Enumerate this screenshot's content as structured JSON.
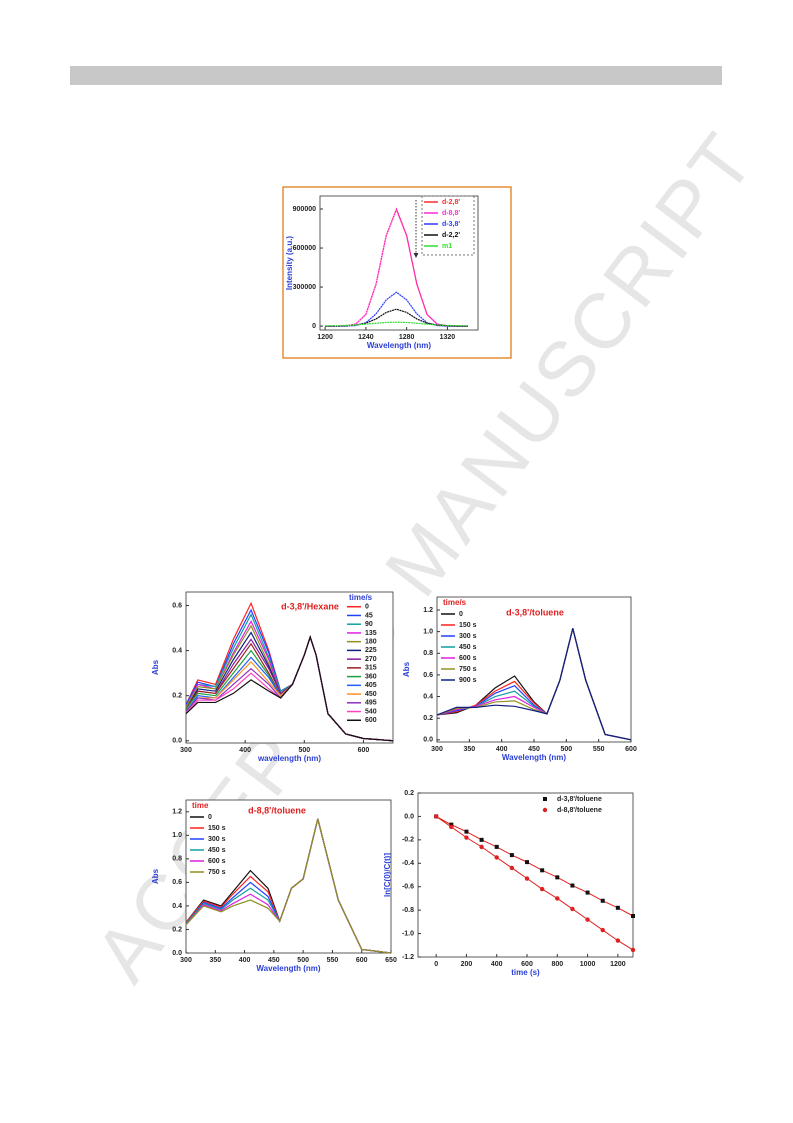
{
  "watermark": "ACCEPTED MANUSCRIPT",
  "chart_data": [
    {
      "type": "line",
      "xlabel": "Wavelength (nm)",
      "ylabel": "Intensity (a.u.)",
      "x": [
        1200,
        1210,
        1220,
        1230,
        1240,
        1250,
        1260,
        1270,
        1280,
        1290,
        1300,
        1310,
        1320,
        1330,
        1340
      ],
      "xlim": [
        1195,
        1350
      ],
      "xticks": [
        1200,
        1240,
        1280,
        1320
      ],
      "ylim": [
        -30000,
        1000000
      ],
      "yticks": [
        0,
        300000,
        600000,
        900000
      ],
      "legend": "upper right",
      "series": [
        {
          "name": "d-2,8'",
          "color": "#ff2a2a",
          "values": [
            0,
            0,
            2000,
            15000,
            90000,
            324000,
            698000,
            900000,
            698000,
            324000,
            90000,
            15000,
            2000,
            0,
            0
          ]
        },
        {
          "name": "d-8,8'",
          "color": "#ff2ad4",
          "values": [
            0,
            0,
            2000,
            15000,
            90000,
            322000,
            695000,
            895000,
            695000,
            322000,
            90000,
            15000,
            2000,
            0,
            0
          ]
        },
        {
          "name": "d-3,8'",
          "color": "#2a3cff",
          "values": [
            0,
            0,
            0,
            4000,
            26000,
            94000,
            202000,
            260000,
            202000,
            94000,
            26000,
            4000,
            0,
            0,
            0
          ]
        },
        {
          "name": "d-2,2'",
          "color": "#111111",
          "values": [
            0,
            0,
            2000,
            8000,
            22000,
            55000,
            105000,
            130000,
            105000,
            55000,
            22000,
            8000,
            2000,
            0,
            0
          ]
        },
        {
          "name": "m1",
          "color": "#33dd33",
          "values": [
            2000,
            3000,
            5000,
            9000,
            15000,
            22000,
            28000,
            30000,
            28000,
            22000,
            15000,
            9000,
            5000,
            3000,
            2000
          ]
        }
      ]
    },
    {
      "type": "line",
      "title": "d-3,8'/Hexane",
      "legend_title": "time/s",
      "xlabel": "wavelength (nm)",
      "ylabel": "Abs",
      "x": [
        300,
        320,
        350,
        380,
        410,
        440,
        460,
        480,
        500,
        510,
        520,
        540,
        570,
        600,
        650
      ],
      "xlim": [
        300,
        650
      ],
      "xticks": [
        300,
        400,
        500,
        600
      ],
      "ylim": [
        -0.01,
        0.66
      ],
      "yticks": [
        {
          "value": 0,
          "label": "0.0"
        },
        0.2,
        0.4,
        0.6
      ],
      "legend": "upper right",
      "series": [
        {
          "name": "0",
          "color": "#ff2020",
          "values": [
            0.16,
            0.27,
            0.25,
            0.45,
            0.61,
            0.4,
            0.22,
            0.25,
            0.38,
            0.46,
            0.38,
            0.12,
            0.03,
            0.01,
            0
          ]
        },
        {
          "name": "45",
          "color": "#2040ff",
          "values": [
            0.16,
            0.26,
            0.24,
            0.43,
            0.58,
            0.39,
            0.22,
            0.25,
            0.38,
            0.46,
            0.38,
            0.12,
            0.03,
            0.01,
            0
          ]
        },
        {
          "name": "90",
          "color": "#10a0a0",
          "values": [
            0.15,
            0.25,
            0.24,
            0.41,
            0.56,
            0.37,
            0.22,
            0.25,
            0.38,
            0.46,
            0.38,
            0.12,
            0.03,
            0.01,
            0
          ]
        },
        {
          "name": "135",
          "color": "#e020e0",
          "values": [
            0.15,
            0.25,
            0.23,
            0.39,
            0.53,
            0.36,
            0.21,
            0.25,
            0.38,
            0.46,
            0.38,
            0.12,
            0.03,
            0.01,
            0
          ]
        },
        {
          "name": "180",
          "color": "#909020",
          "values": [
            0.15,
            0.24,
            0.23,
            0.38,
            0.51,
            0.34,
            0.21,
            0.25,
            0.38,
            0.46,
            0.38,
            0.12,
            0.03,
            0.01,
            0
          ]
        },
        {
          "name": "225",
          "color": "#102080",
          "values": [
            0.14,
            0.23,
            0.22,
            0.36,
            0.48,
            0.33,
            0.21,
            0.25,
            0.38,
            0.46,
            0.38,
            0.12,
            0.03,
            0.01,
            0
          ]
        },
        {
          "name": "270",
          "color": "#8020a0",
          "values": [
            0.14,
            0.22,
            0.21,
            0.34,
            0.45,
            0.32,
            0.21,
            0.25,
            0.38,
            0.46,
            0.38,
            0.12,
            0.03,
            0.01,
            0
          ]
        },
        {
          "name": "315",
          "color": "#a02020",
          "values": [
            0.14,
            0.22,
            0.21,
            0.32,
            0.43,
            0.3,
            0.2,
            0.25,
            0.38,
            0.46,
            0.38,
            0.12,
            0.03,
            0.01,
            0
          ]
        },
        {
          "name": "360",
          "color": "#20a040",
          "values": [
            0.14,
            0.21,
            0.2,
            0.3,
            0.4,
            0.29,
            0.2,
            0.25,
            0.38,
            0.46,
            0.38,
            0.12,
            0.03,
            0.01,
            0
          ]
        },
        {
          "name": "405",
          "color": "#2060ff",
          "values": [
            0.13,
            0.2,
            0.19,
            0.28,
            0.37,
            0.28,
            0.2,
            0.25,
            0.38,
            0.46,
            0.38,
            0.12,
            0.03,
            0.01,
            0
          ]
        },
        {
          "name": "450",
          "color": "#ff9020",
          "values": [
            0.13,
            0.19,
            0.19,
            0.27,
            0.35,
            0.26,
            0.2,
            0.25,
            0.38,
            0.46,
            0.38,
            0.12,
            0.03,
            0.01,
            0
          ]
        },
        {
          "name": "495",
          "color": "#9030c0",
          "values": [
            0.13,
            0.19,
            0.18,
            0.25,
            0.32,
            0.25,
            0.19,
            0.25,
            0.38,
            0.46,
            0.38,
            0.12,
            0.03,
            0.01,
            0
          ]
        },
        {
          "name": "540",
          "color": "#ff40c0",
          "values": [
            0.12,
            0.18,
            0.18,
            0.23,
            0.3,
            0.23,
            0.19,
            0.25,
            0.38,
            0.46,
            0.38,
            0.12,
            0.03,
            0.01,
            0
          ]
        },
        {
          "name": "600",
          "color": "#111111",
          "values": [
            0.12,
            0.17,
            0.17,
            0.21,
            0.27,
            0.22,
            0.19,
            0.25,
            0.38,
            0.46,
            0.38,
            0.12,
            0.03,
            0.01,
            0
          ]
        }
      ]
    },
    {
      "type": "line",
      "title": "d-3,8'/toluene",
      "legend_title": "time/s",
      "xlabel": "Wavelength (nm)",
      "ylabel": "Abs",
      "x": [
        300,
        330,
        360,
        390,
        420,
        450,
        470,
        490,
        510,
        530,
        560,
        600
      ],
      "xlim": [
        300,
        600
      ],
      "xticks": [
        300,
        350,
        400,
        450,
        500,
        550,
        600
      ],
      "ylim": [
        -0.02,
        1.32
      ],
      "yticks": [
        {
          "value": 0,
          "label": "0.0"
        },
        0.2,
        0.4,
        0.6,
        0.8,
        {
          "value": 1,
          "label": "1.0"
        },
        1.2
      ],
      "legend": "upper left",
      "series": [
        {
          "name": "0",
          "color": "#111111",
          "values": [
            0.23,
            0.25,
            0.32,
            0.48,
            0.59,
            0.35,
            0.24,
            0.55,
            1.03,
            0.55,
            0.05,
            0
          ]
        },
        {
          "name": "150 s",
          "color": "#ff2020",
          "values": [
            0.23,
            0.26,
            0.32,
            0.45,
            0.54,
            0.34,
            0.24,
            0.55,
            1.03,
            0.55,
            0.05,
            0
          ]
        },
        {
          "name": "300 s",
          "color": "#2040ff",
          "values": [
            0.23,
            0.27,
            0.31,
            0.43,
            0.5,
            0.32,
            0.24,
            0.55,
            1.03,
            0.55,
            0.05,
            0
          ]
        },
        {
          "name": "450 s",
          "color": "#10a0a0",
          "values": [
            0.23,
            0.28,
            0.31,
            0.4,
            0.45,
            0.31,
            0.24,
            0.55,
            1.03,
            0.55,
            0.05,
            0
          ]
        },
        {
          "name": "600 s",
          "color": "#e020e0",
          "values": [
            0.23,
            0.28,
            0.31,
            0.37,
            0.4,
            0.3,
            0.24,
            0.55,
            1.03,
            0.55,
            0.05,
            0
          ]
        },
        {
          "name": "750 s",
          "color": "#909020",
          "values": [
            0.23,
            0.29,
            0.3,
            0.35,
            0.36,
            0.28,
            0.24,
            0.55,
            1.03,
            0.55,
            0.05,
            0
          ]
        },
        {
          "name": "900 s",
          "color": "#102080",
          "values": [
            0.23,
            0.3,
            0.3,
            0.32,
            0.31,
            0.27,
            0.24,
            0.55,
            1.03,
            0.55,
            0.05,
            0
          ]
        }
      ]
    },
    {
      "type": "line",
      "title": "d-8,8'/toluene",
      "legend_title": "time",
      "xlabel": "Wavelength (nm)",
      "ylabel": "Abs",
      "x": [
        300,
        330,
        360,
        380,
        410,
        440,
        460,
        480,
        500,
        525,
        560,
        600,
        650
      ],
      "xlim": [
        300,
        650
      ],
      "xticks": [
        300,
        350,
        400,
        450,
        500,
        550,
        600,
        650
      ],
      "ylim": [
        0,
        1.3
      ],
      "yticks": [
        {
          "value": 0,
          "label": "0.0"
        },
        0.2,
        0.4,
        0.6,
        0.8,
        {
          "value": 1,
          "label": "1.0"
        },
        1.2
      ],
      "legend": "upper left",
      "series": [
        {
          "name": "0",
          "color": "#111111",
          "values": [
            0.26,
            0.45,
            0.4,
            0.52,
            0.7,
            0.55,
            0.27,
            0.55,
            0.63,
            1.14,
            0.45,
            0.03,
            0
          ]
        },
        {
          "name": "150 s",
          "color": "#ff2020",
          "values": [
            0.26,
            0.44,
            0.39,
            0.5,
            0.65,
            0.52,
            0.27,
            0.55,
            0.63,
            1.14,
            0.45,
            0.03,
            0
          ]
        },
        {
          "name": "300 s",
          "color": "#2040ff",
          "values": [
            0.25,
            0.43,
            0.38,
            0.47,
            0.6,
            0.48,
            0.27,
            0.55,
            0.63,
            1.14,
            0.45,
            0.03,
            0
          ]
        },
        {
          "name": "450 s",
          "color": "#10a0a0",
          "values": [
            0.25,
            0.42,
            0.37,
            0.45,
            0.55,
            0.45,
            0.27,
            0.55,
            0.63,
            1.14,
            0.45,
            0.03,
            0
          ]
        },
        {
          "name": "600 s",
          "color": "#e020e0",
          "values": [
            0.24,
            0.41,
            0.36,
            0.42,
            0.5,
            0.41,
            0.27,
            0.55,
            0.63,
            1.14,
            0.45,
            0.03,
            0
          ]
        },
        {
          "name": "750 s",
          "color": "#909020",
          "values": [
            0.24,
            0.4,
            0.35,
            0.4,
            0.45,
            0.38,
            0.27,
            0.55,
            0.63,
            1.14,
            0.45,
            0.03,
            0
          ]
        }
      ]
    },
    {
      "type": "scatter",
      "xlabel": "time (s)",
      "ylabel": "ln[C(0)/C(t)]",
      "fit_color": "#e02020",
      "x": [
        0,
        100,
        200,
        300,
        400,
        500,
        600,
        700,
        800,
        900,
        1000,
        1100,
        1200,
        1300
      ],
      "xlim": [
        -120,
        1300
      ],
      "xticks": [
        0,
        200,
        400,
        600,
        800,
        1000,
        1200
      ],
      "ylim": [
        -1.2,
        0.2
      ],
      "yticks": [
        0.2,
        {
          "value": 0,
          "label": "0.0"
        },
        -0.2,
        -0.4,
        -0.6,
        -0.8,
        {
          "value": -1,
          "label": "-1.0"
        },
        -1.2
      ],
      "legend": "upper right",
      "series": [
        {
          "name": "d-3,8'/toluene",
          "color": "#111111",
          "marker": "square",
          "values": [
            0,
            -0.07,
            -0.13,
            -0.2,
            -0.26,
            -0.33,
            -0.39,
            -0.46,
            -0.52,
            -0.59,
            -0.65,
            -0.72,
            -0.78,
            -0.85
          ]
        },
        {
          "name": "d-8,8'/toluene",
          "color": "#e02020",
          "marker": "circle",
          "values": [
            0,
            -0.09,
            -0.18,
            -0.26,
            -0.35,
            -0.44,
            -0.53,
            -0.62,
            -0.7,
            -0.79,
            -0.88,
            -0.97,
            -1.06,
            -1.14
          ]
        }
      ]
    }
  ]
}
